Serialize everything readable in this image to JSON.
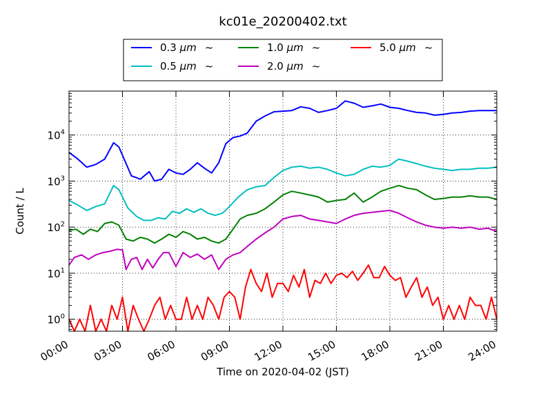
{
  "chart_data": {
    "type": "line",
    "title": "kc01e_20200402.txt",
    "xlabel": "Time on 2020-04-02 (JST)",
    "ylabel": "Count / L",
    "xlim_hours": [
      0,
      24
    ],
    "ylim": [
      0.55,
      90000
    ],
    "y_scale": "log",
    "x_ticks": [
      {
        "hour": 0,
        "label": "00:00"
      },
      {
        "hour": 3,
        "label": "03:00"
      },
      {
        "hour": 6,
        "label": "06:00"
      },
      {
        "hour": 9,
        "label": "09:00"
      },
      {
        "hour": 12,
        "label": "12:00"
      },
      {
        "hour": 15,
        "label": "15:00"
      },
      {
        "hour": 18,
        "label": "18:00"
      },
      {
        "hour": 21,
        "label": "21:00"
      },
      {
        "hour": 24,
        "label": "24:00"
      }
    ],
    "y_ticks": [
      {
        "value": 1,
        "base": "10",
        "exp": "0"
      },
      {
        "value": 10,
        "base": "10",
        "exp": "1"
      },
      {
        "value": 100,
        "base": "10",
        "exp": "2"
      },
      {
        "value": 1000,
        "base": "10",
        "exp": "3"
      },
      {
        "value": 10000,
        "base": "10",
        "exp": "4"
      }
    ],
    "grid": true,
    "legend_position": "top-center",
    "series": [
      {
        "name": "0.3",
        "unit": "μm",
        "suffix": "~",
        "color": "#0000ff",
        "x": [
          0,
          0.5,
          1,
          1.5,
          2,
          2.5,
          2.8,
          3.5,
          4,
          4.5,
          4.8,
          5.2,
          5.6,
          6,
          6.4,
          6.8,
          7.2,
          7.6,
          8,
          8.4,
          8.8,
          9.2,
          9.6,
          10,
          10.5,
          11,
          11.5,
          12,
          12.5,
          13,
          13.5,
          14,
          14.5,
          15,
          15.5,
          16,
          16.5,
          17,
          17.5,
          18,
          18.5,
          19,
          19.5,
          20,
          20.5,
          21,
          21.5,
          22,
          22.5,
          23,
          23.5,
          24
        ],
        "values": [
          4200,
          3000,
          2000,
          2300,
          3000,
          6800,
          5500,
          1300,
          1100,
          1600,
          1000,
          1100,
          1800,
          1500,
          1400,
          1800,
          2500,
          1900,
          1500,
          2500,
          6500,
          8800,
          9500,
          11000,
          20000,
          26000,
          32000,
          33000,
          34000,
          41000,
          38000,
          31000,
          34000,
          38000,
          55000,
          49000,
          40000,
          43000,
          47000,
          40000,
          38000,
          34000,
          31000,
          30000,
          27000,
          28000,
          30000,
          31000,
          33000,
          34000,
          34000,
          34000
        ]
      },
      {
        "name": "0.5",
        "unit": "μm",
        "suffix": "~",
        "color": "#00bfbf",
        "x": [
          0,
          0.5,
          1,
          1.5,
          2,
          2.5,
          2.8,
          3.3,
          3.8,
          4.2,
          4.6,
          5,
          5.4,
          5.8,
          6.2,
          6.6,
          7,
          7.4,
          7.8,
          8.2,
          8.6,
          9,
          9.5,
          10,
          10.5,
          11,
          11.5,
          12,
          12.5,
          13,
          13.5,
          14,
          14.5,
          15,
          15.5,
          16,
          16.5,
          17,
          17.5,
          18,
          18.5,
          19,
          19.5,
          20,
          20.5,
          21,
          21.5,
          22,
          22.5,
          23,
          23.5,
          24
        ],
        "values": [
          380,
          300,
          230,
          280,
          320,
          800,
          650,
          260,
          170,
          140,
          140,
          160,
          150,
          220,
          200,
          250,
          210,
          250,
          200,
          180,
          200,
          280,
          450,
          650,
          750,
          800,
          1200,
          1700,
          2000,
          2100,
          1900,
          2000,
          1800,
          1500,
          1300,
          1400,
          1800,
          2100,
          2000,
          2200,
          3000,
          2700,
          2400,
          2100,
          1900,
          1800,
          1700,
          1800,
          1800,
          1900,
          1900,
          2000
        ]
      },
      {
        "name": "1.0",
        "unit": "μm",
        "suffix": "~",
        "color": "#008000",
        "x": [
          0,
          0.4,
          0.8,
          1.2,
          1.6,
          2,
          2.4,
          2.8,
          3.2,
          3.6,
          4,
          4.4,
          4.8,
          5.2,
          5.6,
          6,
          6.4,
          6.8,
          7.2,
          7.6,
          8,
          8.4,
          8.8,
          9.2,
          9.6,
          10,
          10.5,
          11,
          11.5,
          12,
          12.5,
          13,
          13.5,
          14,
          14.5,
          15,
          15.5,
          16,
          16.5,
          17,
          17.5,
          18,
          18.5,
          19,
          19.5,
          20,
          20.5,
          21,
          21.5,
          22,
          22.5,
          23,
          23.5,
          24
        ],
        "values": [
          85,
          90,
          70,
          90,
          80,
          120,
          130,
          110,
          55,
          50,
          60,
          55,
          45,
          55,
          70,
          60,
          80,
          70,
          55,
          60,
          50,
          45,
          55,
          90,
          150,
          180,
          200,
          250,
          350,
          500,
          600,
          550,
          500,
          450,
          350,
          380,
          400,
          550,
          350,
          450,
          600,
          700,
          800,
          700,
          650,
          500,
          400,
          420,
          450,
          450,
          480,
          450,
          450,
          400
        ]
      },
      {
        "name": "2.0",
        "unit": "μm",
        "suffix": "~",
        "color": "#bf00bf",
        "x": [
          0,
          0.3,
          0.7,
          1.1,
          1.5,
          1.9,
          2.3,
          2.7,
          3,
          3.2,
          3.5,
          3.8,
          4.1,
          4.4,
          4.7,
          5,
          5.3,
          5.6,
          6,
          6.4,
          6.8,
          7.2,
          7.6,
          8,
          8.4,
          8.8,
          9.2,
          9.6,
          10,
          10.5,
          11,
          11.5,
          12,
          12.5,
          13,
          13.5,
          14,
          14.5,
          15,
          15.5,
          16,
          16.5,
          17,
          17.5,
          18,
          18.5,
          19,
          19.5,
          20,
          20.5,
          21,
          21.5,
          22,
          22.5,
          23,
          23.5,
          24
        ],
        "values": [
          15,
          22,
          25,
          20,
          25,
          28,
          30,
          33,
          32,
          12,
          20,
          22,
          12,
          20,
          13,
          20,
          28,
          28,
          14,
          28,
          22,
          26,
          20,
          25,
          12,
          20,
          25,
          28,
          38,
          55,
          75,
          100,
          150,
          170,
          180,
          150,
          140,
          130,
          120,
          150,
          180,
          200,
          210,
          220,
          230,
          200,
          160,
          130,
          110,
          100,
          95,
          100,
          95,
          100,
          90,
          95,
          80
        ]
      },
      {
        "name": "5.0",
        "unit": "μm",
        "suffix": "~",
        "color": "#ff0000",
        "x": [
          0,
          0.3,
          0.6,
          0.9,
          1.2,
          1.5,
          1.8,
          2.1,
          2.4,
          2.7,
          3,
          3.3,
          3.6,
          3.9,
          4.2,
          4.5,
          4.8,
          5.1,
          5.4,
          5.7,
          6,
          6.3,
          6.6,
          6.9,
          7.2,
          7.5,
          7.8,
          8.1,
          8.4,
          8.7,
          9,
          9.3,
          9.6,
          9.9,
          10.2,
          10.5,
          10.8,
          11.1,
          11.4,
          11.7,
          12,
          12.3,
          12.6,
          12.9,
          13.2,
          13.5,
          13.8,
          14.1,
          14.4,
          14.7,
          15,
          15.3,
          15.6,
          15.9,
          16.2,
          16.5,
          16.8,
          17.1,
          17.4,
          17.7,
          18,
          18.3,
          18.6,
          18.9,
          19.2,
          19.5,
          19.8,
          20.1,
          20.4,
          20.7,
          21,
          21.3,
          21.6,
          21.9,
          22.2,
          22.5,
          22.8,
          23.1,
          23.4,
          23.7,
          24
        ],
        "values": [
          1,
          0.55,
          1,
          0.55,
          2,
          0.55,
          1,
          0.55,
          2,
          1,
          3,
          0.55,
          2,
          1,
          0.55,
          1,
          2,
          3,
          1,
          2,
          1,
          1,
          3,
          1,
          2,
          1,
          3,
          2,
          1,
          3,
          4,
          3,
          1,
          5,
          12,
          6,
          4,
          10,
          3,
          6,
          6,
          4,
          9,
          5,
          12,
          3,
          7,
          6,
          10,
          6,
          9,
          10,
          8,
          11,
          7,
          10,
          15,
          8,
          8,
          14,
          9,
          7,
          8,
          3,
          5,
          8,
          3,
          5,
          2,
          3,
          1,
          2,
          1,
          2,
          1,
          3,
          2,
          2,
          1,
          3,
          1
        ]
      }
    ]
  }
}
